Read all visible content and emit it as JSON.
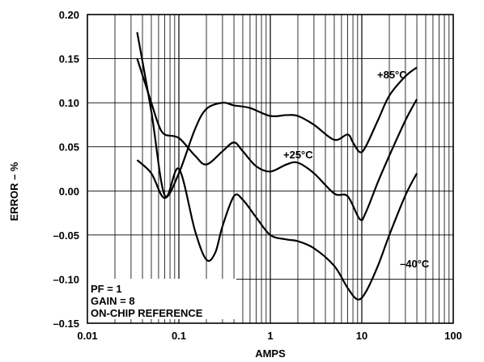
{
  "chart_data": {
    "type": "line",
    "title": "",
    "xlabel": "AMPS",
    "ylabel": "ERROR – %",
    "x_scale": "log",
    "xlim": [
      0.01,
      100
    ],
    "ylim": [
      -0.15,
      0.2
    ],
    "x_ticks": [
      "0.01",
      "0.1",
      "1",
      "10",
      "100"
    ],
    "y_ticks": [
      "0.20",
      "0.15",
      "0.10",
      "0.05",
      "0.00",
      "–0.05",
      "–0.10",
      "–0.15"
    ],
    "grid": true,
    "annotations": [
      "PF = 1",
      "GAIN = 8",
      "ON-CHIP REFERENCE"
    ],
    "series": [
      {
        "name": "+85°C",
        "points": [
          [
            0.035,
            0.035
          ],
          [
            0.05,
            0.02
          ],
          [
            0.07,
            -0.008
          ],
          [
            0.1,
            0.02
          ],
          [
            0.15,
            0.07
          ],
          [
            0.2,
            0.093
          ],
          [
            0.3,
            0.1
          ],
          [
            0.4,
            0.097
          ],
          [
            0.6,
            0.094
          ],
          [
            1.0,
            0.085
          ],
          [
            1.5,
            0.086
          ],
          [
            2.0,
            0.085
          ],
          [
            3.0,
            0.075
          ],
          [
            5.0,
            0.058
          ],
          [
            7.0,
            0.064
          ],
          [
            8.0,
            0.055
          ],
          [
            9.5,
            0.044
          ],
          [
            11.0,
            0.05
          ],
          [
            15.0,
            0.08
          ],
          [
            20.0,
            0.108
          ],
          [
            30.0,
            0.13
          ],
          [
            40.0,
            0.14
          ]
        ]
      },
      {
        "name": "+25°C",
        "points": [
          [
            0.035,
            0.15
          ],
          [
            0.05,
            0.1
          ],
          [
            0.06,
            0.075
          ],
          [
            0.07,
            0.064
          ],
          [
            0.1,
            0.06
          ],
          [
            0.15,
            0.04
          ],
          [
            0.2,
            0.03
          ],
          [
            0.3,
            0.045
          ],
          [
            0.4,
            0.055
          ],
          [
            0.5,
            0.045
          ],
          [
            0.7,
            0.028
          ],
          [
            1.0,
            0.022
          ],
          [
            1.5,
            0.03
          ],
          [
            2.0,
            0.032
          ],
          [
            3.0,
            0.02
          ],
          [
            5.0,
            -0.003
          ],
          [
            7.0,
            -0.006
          ],
          [
            9.5,
            -0.032
          ],
          [
            11.0,
            -0.025
          ],
          [
            15.0,
            0.01
          ],
          [
            20.0,
            0.04
          ],
          [
            30.0,
            0.08
          ],
          [
            40.0,
            0.104
          ]
        ]
      },
      {
        "name": "–40°C",
        "points": [
          [
            0.035,
            0.18
          ],
          [
            0.05,
            0.09
          ],
          [
            0.07,
            -0.005
          ],
          [
            0.1,
            0.025
          ],
          [
            0.15,
            -0.045
          ],
          [
            0.2,
            -0.078
          ],
          [
            0.25,
            -0.07
          ],
          [
            0.3,
            -0.04
          ],
          [
            0.4,
            -0.006
          ],
          [
            0.5,
            -0.01
          ],
          [
            0.7,
            -0.03
          ],
          [
            1.0,
            -0.05
          ],
          [
            1.5,
            -0.055
          ],
          [
            2.0,
            -0.057
          ],
          [
            3.0,
            -0.065
          ],
          [
            5.0,
            -0.085
          ],
          [
            7.0,
            -0.11
          ],
          [
            9.0,
            -0.123
          ],
          [
            11.0,
            -0.115
          ],
          [
            15.0,
            -0.085
          ],
          [
            20.0,
            -0.05
          ],
          [
            30.0,
            -0.005
          ],
          [
            40.0,
            0.02
          ]
        ]
      }
    ]
  }
}
